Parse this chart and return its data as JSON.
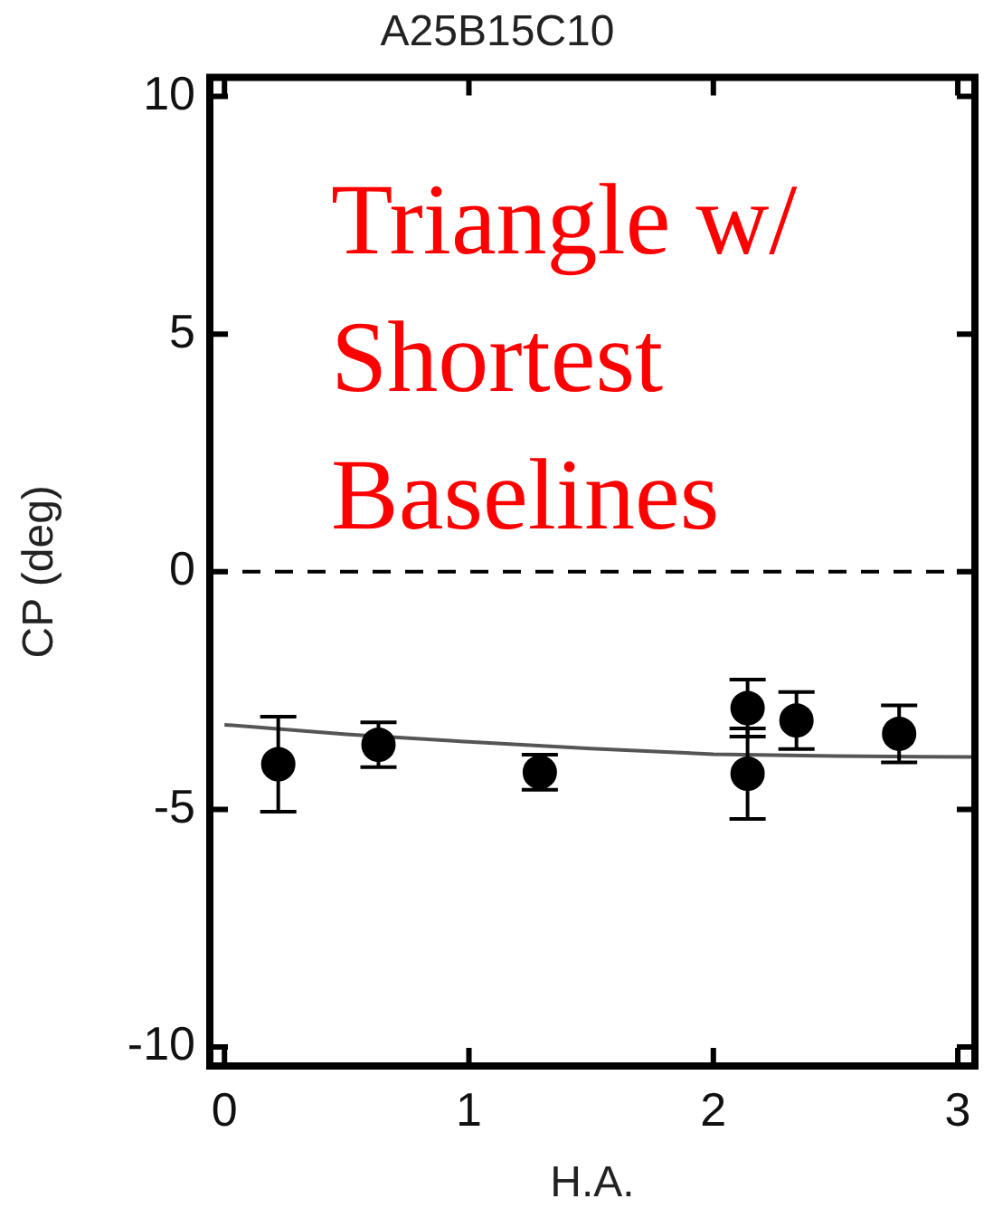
{
  "chart_data": {
    "type": "scatter",
    "title": "A25B15C10",
    "xlabel": "H.A.",
    "ylabel": "CP (deg)",
    "xlim": [
      -0.06,
      3.07
    ],
    "xticks": [
      0,
      1,
      2,
      3
    ],
    "ylim": [
      -10.4,
      10.4
    ],
    "yticks": [
      -10,
      -5,
      0,
      5,
      10
    ],
    "grid": false,
    "legend": false,
    "marker": "circle",
    "series": [
      {
        "color": "#000000",
        "x": [
          0.22,
          0.63,
          1.29,
          2.14,
          2.14,
          2.34,
          2.76
        ],
        "values": [
          -4.05,
          -3.64,
          -4.22,
          -2.87,
          -4.25,
          -3.13,
          -3.41
        ],
        "errors": [
          1.0,
          0.47,
          0.37,
          0.6,
          0.95,
          0.6,
          0.6
        ]
      },
      {
        "type": "line",
        "marker": "none",
        "color": "#555555",
        "line_style": "solid",
        "x": [
          0,
          0.5,
          1,
          1.5,
          2,
          2.5,
          3.07
        ],
        "values": [
          -3.22,
          -3.42,
          -3.58,
          -3.72,
          -3.84,
          -3.88,
          -3.9
        ]
      }
    ],
    "ref_lines": [
      {
        "axis": "y",
        "value": 0,
        "color": "#000000",
        "line_style": "dashed"
      }
    ],
    "annotations": [
      "Triangle w/ Shortest Baselines"
    ]
  }
}
